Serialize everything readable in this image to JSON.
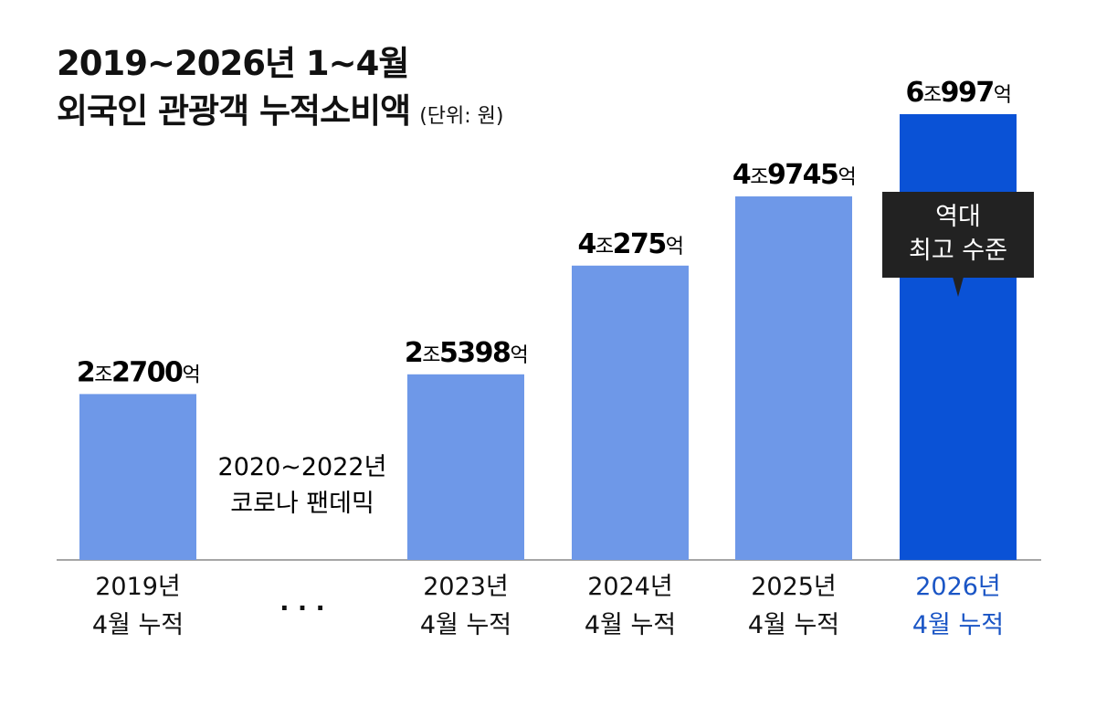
{
  "chart_data": {
    "type": "bar",
    "title": "2019~2026년 1~4월",
    "subtitle": "외국인 관광객 누적소비액",
    "unit_label": "(단위: 원)",
    "ylim": [
      0,
      75000
    ],
    "categories": [
      {
        "line1": "2019년",
        "line2": "4월 누적"
      },
      {
        "line1": "",
        "line2": ". . ."
      },
      {
        "line1": "2023년",
        "line2": "4월 누적"
      },
      {
        "line1": "2024년",
        "line2": "4월 누적"
      },
      {
        "line1": "2025년",
        "line2": "4월 누적"
      },
      {
        "line1": "2026년",
        "line2": "4월 누적"
      }
    ],
    "values": [
      22700,
      null,
      25398,
      40275,
      49745,
      60997
    ],
    "value_labels": [
      {
        "jo": "2",
        "jo_unit": "조",
        "eok": "2700",
        "eok_unit": "억"
      },
      null,
      {
        "jo": "2",
        "jo_unit": "조",
        "eok": "5398",
        "eok_unit": "억"
      },
      {
        "jo": "4",
        "jo_unit": "조",
        "eok": "275",
        "eok_unit": "억"
      },
      {
        "jo": "4",
        "jo_unit": "조",
        "eok": "9745",
        "eok_unit": "억"
      },
      {
        "jo": "6",
        "jo_unit": "조",
        "eok": "997",
        "eok_unit": "억"
      }
    ],
    "gap_note": {
      "line1": "2020~2022년",
      "line2": "코로나 팬데믹"
    },
    "callout": {
      "line1": "역대",
      "line2": "최고 수준"
    },
    "colors": {
      "bar": "#6e98e8",
      "highlight": "#0a52d6",
      "highlight_text": "#1a55c5",
      "callout_bg": "#222222",
      "axis": "#888888"
    },
    "highlight_index": 5
  }
}
